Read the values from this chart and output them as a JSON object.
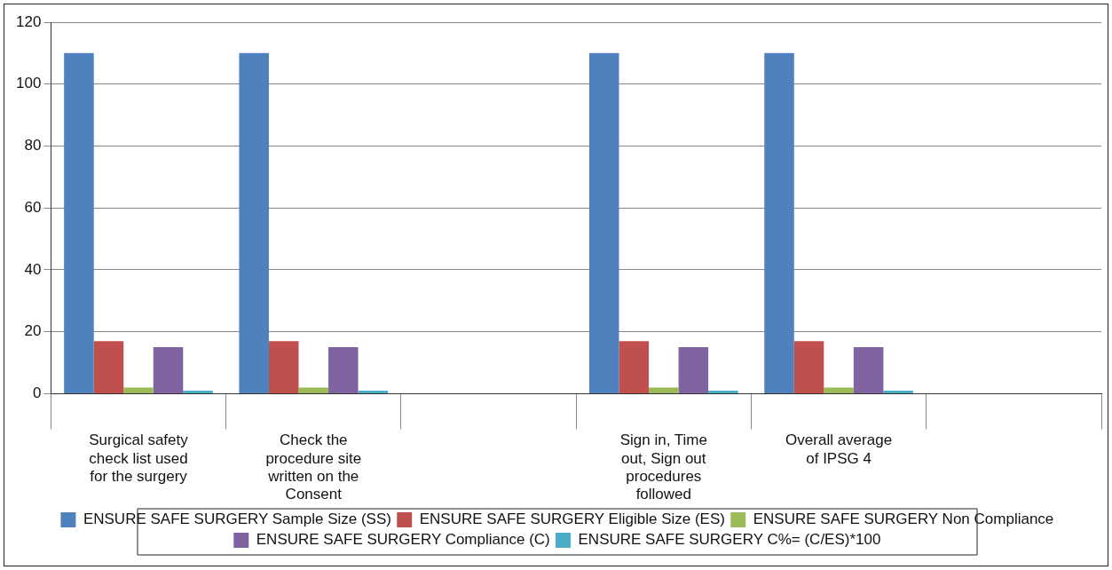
{
  "chart_data": {
    "type": "bar",
    "categories": [
      "Surgical safety check list used for the surgery",
      "Check the procedure site written on the Consent",
      null,
      "Sign in, Time out, Sign out procedures followed",
      "Overall average of IPSG 4",
      null
    ],
    "series": [
      {
        "name": "ENSURE SAFE SURGERY Sample Size (SS)",
        "color": "#4f81bd",
        "values": [
          110,
          110,
          null,
          110,
          110,
          null
        ]
      },
      {
        "name": "ENSURE SAFE SURGERY Eligible Size (ES)",
        "color": "#c0504d",
        "values": [
          17,
          17,
          null,
          17,
          17,
          null
        ]
      },
      {
        "name": "ENSURE SAFE SURGERY Non Compliance",
        "color": "#9bbb59",
        "values": [
          2,
          2,
          null,
          2,
          2,
          null
        ]
      },
      {
        "name": "ENSURE SAFE SURGERY Compliance (C)",
        "color": "#8064a2",
        "values": [
          15,
          15,
          null,
          15,
          15,
          null
        ]
      },
      {
        "name": "ENSURE SAFE SURGERY C%= (C/ES)*100",
        "color": "#4bacc6",
        "values": [
          1,
          1,
          null,
          1,
          1,
          null
        ]
      }
    ],
    "ylim": [
      0,
      120
    ],
    "yticks": [
      0,
      20,
      40,
      60,
      80,
      100,
      120
    ],
    "grid": "y",
    "legend": "bottom"
  }
}
